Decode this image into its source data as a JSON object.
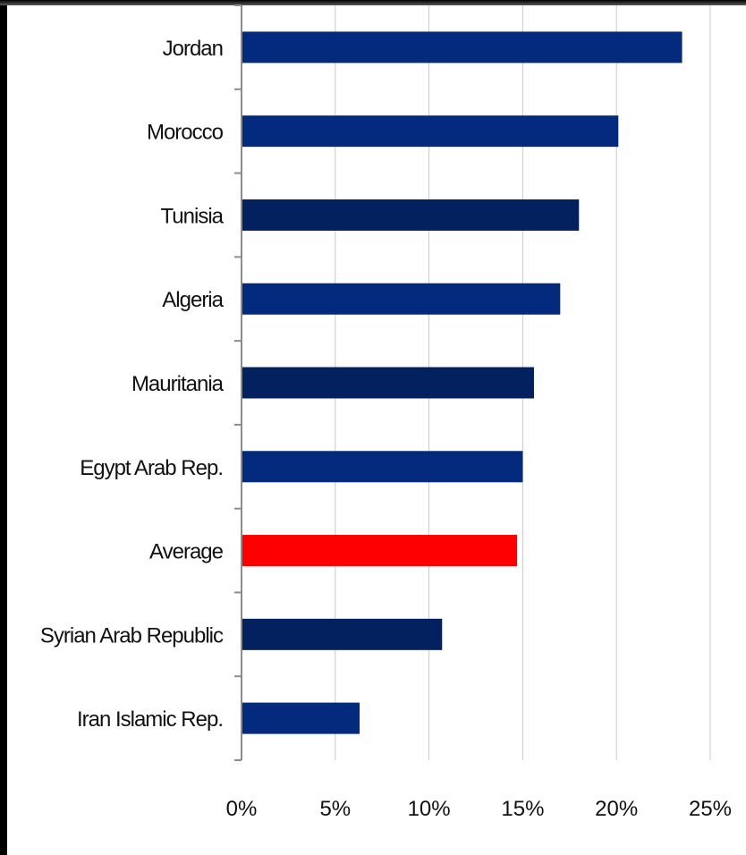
{
  "chart_data": {
    "type": "bar",
    "orientation": "horizontal",
    "categories": [
      "Jordan",
      "Morocco",
      "Tunisia",
      "Algeria",
      "Mauritania",
      "Egypt  Arab Rep.",
      "Average",
      "Syrian Arab Republic",
      "Iran  Islamic Rep."
    ],
    "values": [
      0.235,
      0.201,
      0.18,
      0.17,
      0.156,
      0.15,
      0.147,
      0.107,
      0.063
    ],
    "bar_colors": [
      "#042a7e",
      "#042a7e",
      "#03205f",
      "#042a7e",
      "#03205f",
      "#042a7e",
      "#ff0000",
      "#03205f",
      "#042a7e"
    ],
    "xlim": [
      0,
      0.25
    ],
    "x_ticks": [
      0,
      0.05,
      0.1,
      0.15,
      0.2,
      0.25
    ],
    "x_tick_labels": [
      "0%",
      "5%",
      "10%",
      "15%",
      "20%",
      "25%"
    ],
    "title": "",
    "xlabel": "",
    "ylabel": "",
    "grid": "vertical",
    "legend": "none"
  }
}
